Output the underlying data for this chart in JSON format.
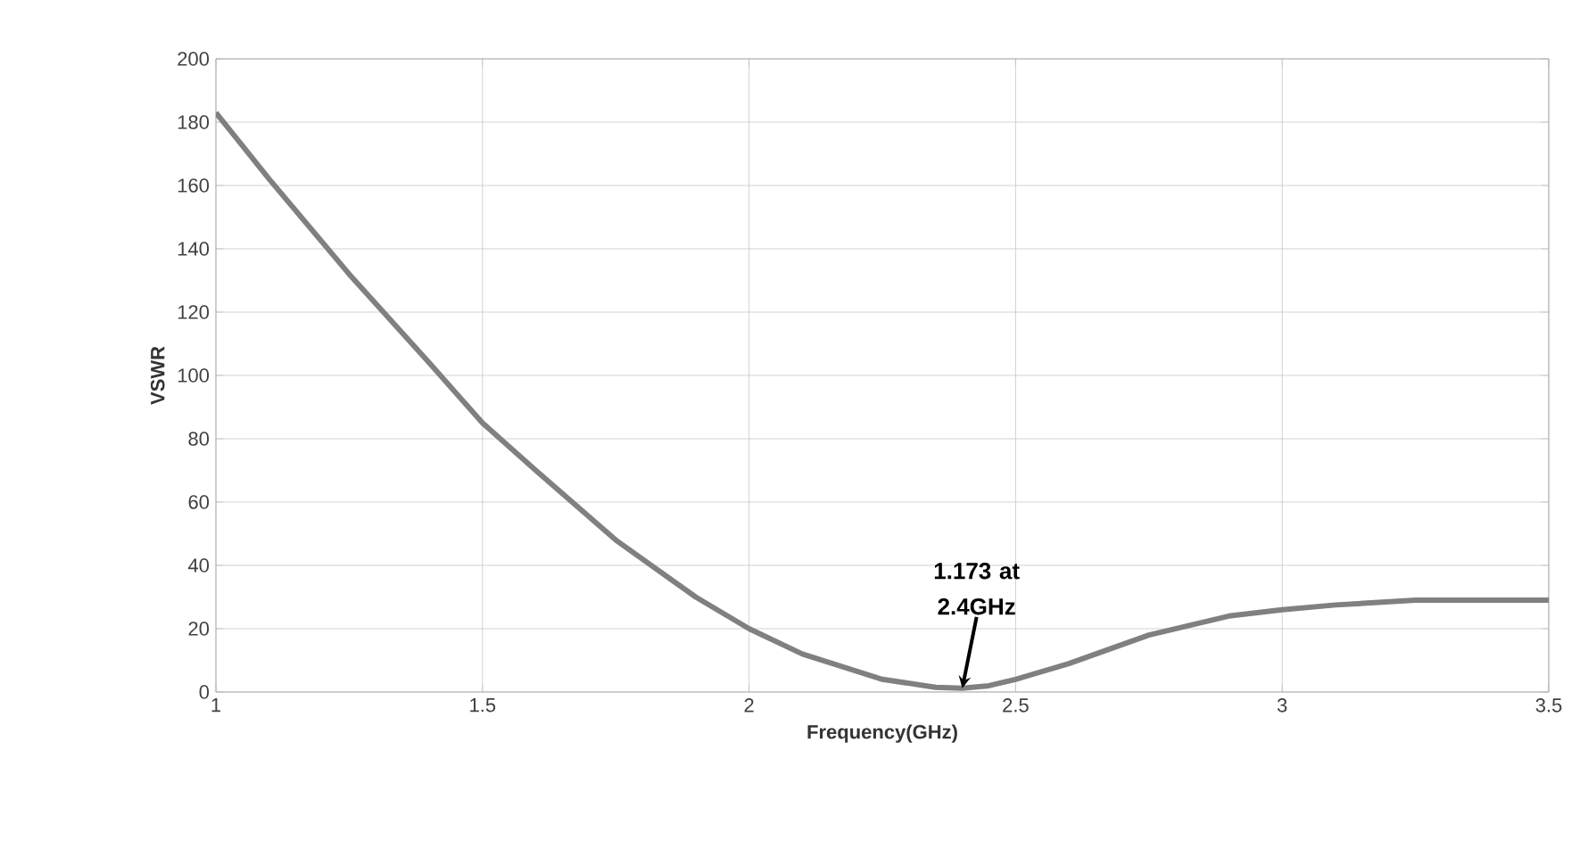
{
  "chart_data": {
    "type": "line",
    "xlabel": "Frequency(GHz)",
    "ylabel": "VSWR",
    "x": [
      1,
      1.1,
      1.25,
      1.4,
      1.5,
      1.6,
      1.75,
      1.9,
      2,
      2.1,
      2.25,
      2.35,
      2.4,
      2.45,
      2.5,
      2.6,
      2.75,
      2.9,
      3,
      3.1,
      3.25,
      3.5
    ],
    "series": [
      {
        "color": "#808080",
        "values": [
          183,
          162,
          132,
          104,
          85,
          70,
          48,
          30,
          20,
          12,
          4,
          1.5,
          1.173,
          2,
          4,
          9,
          18,
          24,
          26,
          27.5,
          29,
          29
        ]
      }
    ],
    "xlim": [
      1,
      3.5
    ],
    "xticks": [
      1,
      1.5,
      2,
      2.5,
      3,
      3.5
    ],
    "ylim": [
      0,
      200
    ],
    "yticks": [
      0,
      20,
      40,
      60,
      80,
      100,
      120,
      140,
      160,
      180,
      200
    ],
    "grid": true,
    "marker": "none",
    "line_style": "solid",
    "annotations": [
      {
        "text": "1.173 at 2.4GHz",
        "x": 2.4,
        "y": 1.173
      }
    ]
  }
}
